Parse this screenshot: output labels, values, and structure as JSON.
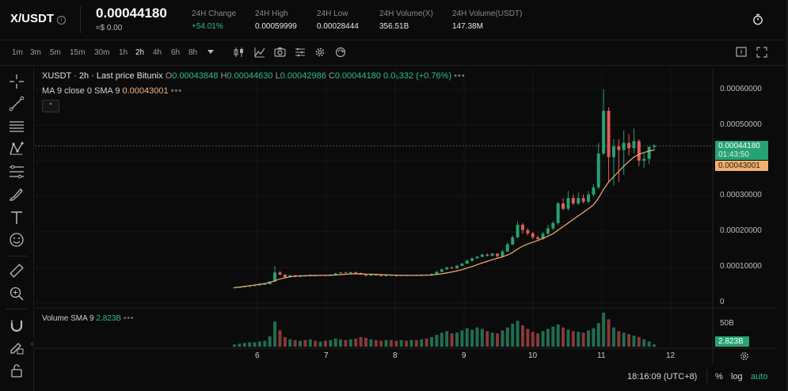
{
  "header": {
    "pair": "X/USDT",
    "price": "0.00044180",
    "usd_value": "≈$ 0.00",
    "stats": [
      {
        "label": "24H Change",
        "value": "+54.01%",
        "color": "#2ebd85"
      },
      {
        "label": "24H High",
        "value": "0.00059999"
      },
      {
        "label": "24H Low",
        "value": "0.00028444"
      },
      {
        "label": "24H Volume(X)",
        "value": "356.51B"
      },
      {
        "label": "24H Volume(USDT)",
        "value": "147.38M"
      }
    ]
  },
  "toolbar": {
    "intervals": [
      "1m",
      "3m",
      "5m",
      "15m",
      "30m",
      "1h",
      "2h",
      "4h",
      "6h",
      "8h"
    ],
    "active_interval": "2h"
  },
  "chart": {
    "symbol_line": "XUSDT · 2h · Last price Bitunix",
    "ohlc": {
      "o": "0.00043848",
      "h": "0.00044630",
      "l": "0.00042986",
      "c": "0.00044180",
      "change": "0.0₅332 (+0.76%)"
    },
    "ma_label": "MA 9 close 0 SMA 9",
    "ma_value": "0.00043001",
    "price_axis": [
      "0.00060000",
      "0.00050000",
      "0.00040000",
      "0.00030000",
      "0.00020000",
      "0.00010000",
      "0"
    ],
    "last_price_tag": "0.00044180",
    "countdown": "01:43:50",
    "ma_tag": "0.00043001",
    "volume_legend": "Volume SMA 9",
    "volume_sma_value": "2.823B",
    "volume_axis_label": "50B",
    "volume_tag": "2.823B",
    "x_axis": [
      "6",
      "7",
      "8",
      "9",
      "10",
      "11",
      "12"
    ],
    "time": "18:16:09 (UTC+8)",
    "bottom_controls": [
      "%",
      "log",
      "auto"
    ],
    "colors": {
      "up": "#26a273",
      "down": "#e15e5e",
      "ma": "#f2b06f",
      "bg": "#0b0b0b"
    }
  },
  "candles": [
    [
      4.2e-05,
      4.4e-05,
      4.3e-05,
      4.48e-05
    ],
    [
      4.4e-05,
      4.52e-05,
      4.36e-05,
      4.58e-05
    ],
    [
      4.52e-05,
      4.68e-05,
      4.48e-05,
      4.72e-05
    ],
    [
      4.68e-05,
      4.82e-05,
      4.62e-05,
      4.88e-05
    ],
    [
      4.82e-05,
      5e-05,
      4.76e-05,
      5.08e-05
    ],
    [
      5e-05,
      5.2e-05,
      4.95e-05,
      5.28e-05
    ],
    [
      5.2e-05,
      5.35e-05,
      5.12e-05,
      5.45e-05
    ],
    [
      5.35e-05,
      6.1e-05,
      5.28e-05,
      6.2e-05
    ],
    [
      6.1e-05,
      8.6e-05,
      6e-05,
      0.000104
    ],
    [
      8.6e-05,
      8e-05,
      7.9e-05,
      9e-05
    ],
    [
      8e-05,
      7.3e-05,
      7.2e-05,
      8.1e-05
    ],
    [
      7.3e-05,
      7.8e-05,
      7.2e-05,
      8e-05
    ],
    [
      7.8e-05,
      7.4e-05,
      7.3e-05,
      7.9e-05
    ],
    [
      7.4e-05,
      7.75e-05,
      7.35e-05,
      7.9e-05
    ],
    [
      7.75e-05,
      7.6e-05,
      7.5e-05,
      7.9e-05
    ],
    [
      7.6e-05,
      7.95e-05,
      7.5e-05,
      8.1e-05
    ],
    [
      7.95e-05,
      7.7e-05,
      7.6e-05,
      8e-05
    ],
    [
      7.7e-05,
      7.9e-05,
      7.65e-05,
      8.05e-05
    ],
    [
      7.9e-05,
      7.65e-05,
      7.6e-05,
      7.95e-05
    ],
    [
      7.65e-05,
      8e-05,
      7.6e-05,
      8.15e-05
    ],
    [
      8e-05,
      8.35e-05,
      7.95e-05,
      8.5e-05
    ],
    [
      8.35e-05,
      8.6e-05,
      8.25e-05,
      8.75e-05
    ],
    [
      8.6e-05,
      8.4e-05,
      8.35e-05,
      8.8e-05
    ],
    [
      8.4e-05,
      8.7e-05,
      8.3e-05,
      8.85e-05
    ],
    [
      8.7e-05,
      8.45e-05,
      8.35e-05,
      8.8e-05
    ],
    [
      8.45e-05,
      8.05e-05,
      8e-05,
      8.55e-05
    ],
    [
      8.05e-05,
      7.7e-05,
      7.6e-05,
      8.15e-05
    ],
    [
      7.7e-05,
      8.1e-05,
      7.6e-05,
      8.3e-05
    ],
    [
      8.1e-05,
      7.8e-05,
      7.7e-05,
      8.2e-05
    ],
    [
      7.8e-05,
      7.6e-05,
      7.5e-05,
      7.9e-05
    ],
    [
      7.6e-05,
      7.9e-05,
      7.5e-05,
      8e-05
    ],
    [
      7.9e-05,
      7.75e-05,
      7.7e-05,
      8e-05
    ],
    [
      7.75e-05,
      7.6e-05,
      7.55e-05,
      7.9e-05
    ],
    [
      7.6e-05,
      7.85e-05,
      7.55e-05,
      7.95e-05
    ],
    [
      7.85e-05,
      7.7e-05,
      7.65e-05,
      7.95e-05
    ],
    [
      7.7e-05,
      7.9e-05,
      7.65e-05,
      8e-05
    ],
    [
      7.9e-05,
      7.75e-05,
      7.7e-05,
      8e-05
    ],
    [
      7.75e-05,
      8e-05,
      7.7e-05,
      8.1e-05
    ],
    [
      8e-05,
      7.9e-05,
      7.85e-05,
      8.15e-05
    ],
    [
      7.9e-05,
      8.2e-05,
      7.85e-05,
      8.35e-05
    ],
    [
      8.2e-05,
      8.8e-05,
      8.15e-05,
      9e-05
    ],
    [
      8.8e-05,
      9.5e-05,
      8.7e-05,
      9.7e-05
    ],
    [
      9.5e-05,
      0.0001,
      9.3e-05,
      0.000102
    ],
    [
      0.0001,
      9.8e-05,
      9.6e-05,
      0.000103
    ],
    [
      9.8e-05,
      0.000105,
      9.7e-05,
      0.000107
    ],
    [
      0.000105,
      0.000111,
      0.000104,
      0.000113
    ],
    [
      0.000111,
      0.000119,
      0.00011,
      0.000122
    ],
    [
      0.000119,
      0.000126,
      0.000117,
      0.000128
    ],
    [
      0.000126,
      0.00013,
      0.000124,
      0.000133
    ],
    [
      0.00013,
      0.000136,
      0.000129,
      0.000139
    ],
    [
      0.000136,
      0.000133,
      0.000131,
      0.00014
    ],
    [
      0.000133,
      0.000139,
      0.000132,
      0.000141
    ],
    [
      0.000139,
      0.000132,
      0.000127,
      0.00014
    ],
    [
      0.000132,
      0.000145,
      0.00013,
      0.00015
    ],
    [
      0.000145,
      0.000165,
      0.000143,
      0.00017
    ],
    [
      0.000165,
      0.000185,
      0.000162,
      0.00019
    ],
    [
      0.000185,
      0.00022,
      0.000182,
      0.00023
    ],
    [
      0.00022,
      0.000205,
      0.000195,
      0.000225
    ],
    [
      0.000205,
      0.000196,
      0.00019,
      0.00021
    ],
    [
      0.000196,
      0.000185,
      0.00018,
      0.0002
    ],
    [
      0.000185,
      0.00018,
      0.000175,
      0.00019
    ],
    [
      0.00018,
      0.000195,
      0.000178,
      0.0002
    ],
    [
      0.000195,
      0.00021,
      0.000192,
      0.00022
    ],
    [
      0.00021,
      0.000225,
      0.000205,
      0.00023
    ],
    [
      0.000225,
      0.00028,
      0.00022,
      0.000285
    ],
    [
      0.00028,
      0.000265,
      0.00026,
      0.000295
    ],
    [
      0.000265,
      0.000295,
      0.00026,
      0.000315
    ],
    [
      0.000295,
      0.00028,
      0.000275,
      0.000305
    ],
    [
      0.00028,
      0.000295,
      0.000275,
      0.00031
    ],
    [
      0.000295,
      0.000285,
      0.00028,
      0.000305
    ],
    [
      0.000285,
      0.000305,
      0.00028,
      0.000315
    ],
    [
      0.000305,
      0.000325,
      0.0003,
      0.000335
    ],
    [
      0.000325,
      0.00042,
      0.00032,
      0.00045
    ],
    [
      0.00042,
      0.00054,
      0.000415,
      0.0005999
    ],
    [
      0.00054,
      0.00041,
      0.00034,
      0.00055
    ],
    [
      0.00041,
      0.00044,
      0.00033,
      0.00046
    ],
    [
      0.00044,
      0.00043,
      0.00034,
      0.00046
    ],
    [
      0.00043,
      0.00045,
      0.00036,
      0.000485
    ],
    [
      0.00045,
      0.000435,
      0.000415,
      0.000475
    ],
    [
      0.000435,
      0.000455,
      0.00042,
      0.00049
    ],
    [
      0.000455,
      0.0004,
      0.000385,
      0.00046
    ],
    [
      0.0004,
      0.000405,
      0.00038,
      0.00042
    ],
    [
      0.000405,
      0.0004385,
      0.00039,
      0.00044
    ],
    [
      0.0004385,
      0.0004418,
      0.0004299,
      0.0004463
    ]
  ],
  "ma": [
    4.4e-05,
    4.5e-05,
    4.7e-05,
    4.9e-05,
    5.1e-05,
    5.3e-05,
    5.5e-05,
    5.8e-05,
    6.3e-05,
    6.8e-05,
    7.1e-05,
    7.4e-05,
    7.6e-05,
    7.65e-05,
    7.7e-05,
    7.75e-05,
    7.75e-05,
    7.8e-05,
    7.8e-05,
    7.82e-05,
    7.9e-05,
    8e-05,
    8.1e-05,
    8.2e-05,
    8.25e-05,
    8.22e-05,
    8.15e-05,
    8.12e-05,
    8.08e-05,
    8e-05,
    7.95e-05,
    7.9e-05,
    7.85e-05,
    7.82e-05,
    7.8e-05,
    7.8e-05,
    7.8e-05,
    7.82e-05,
    7.85e-05,
    7.9e-05,
    8.05e-05,
    8.25e-05,
    8.5e-05,
    8.75e-05,
    9.05e-05,
    9.4e-05,
    9.85e-05,
    0.000103,
    0.000108,
    0.000113,
    0.0001175,
    0.000122,
    0.000126,
    0.00013,
    0.000135,
    0.000142,
    0.000152,
    0.00016,
    0.000166,
    0.000171,
    0.000176,
    0.000182,
    0.000188,
    0.000195,
    0.000205,
    0.000215,
    0.000225,
    0.000235,
    0.000245,
    0.000255,
    0.000265,
    0.000276,
    0.000295,
    0.00032,
    0.00034,
    0.000355,
    0.00037,
    0.000385,
    0.000398,
    0.00041,
    0.000418,
    0.000423,
    0.000427,
    0.00043
  ],
  "volumes": [
    0.3,
    0.4,
    0.5,
    0.6,
    0.6,
    0.7,
    0.8,
    1.4,
    3.4,
    2.2,
    1.3,
    1.0,
    0.9,
    0.8,
    0.9,
    1.0,
    0.8,
    0.7,
    0.8,
    0.9,
    1.1,
    1.0,
    0.9,
    1.0,
    1.1,
    1.3,
    1.2,
    1.0,
    0.9,
    0.8,
    0.9,
    0.9,
    0.8,
    0.9,
    0.8,
    0.9,
    0.9,
    1.0,
    1.1,
    1.3,
    1.6,
    1.9,
    2.1,
    1.8,
    1.9,
    2.2,
    2.5,
    2.3,
    2.6,
    2.4,
    2.1,
    1.9,
    1.8,
    2.2,
    2.6,
    3.1,
    3.5,
    2.9,
    2.4,
    2.0,
    1.8,
    2.1,
    2.4,
    2.7,
    3.0,
    2.6,
    2.3,
    2.1,
    2.0,
    1.9,
    2.2,
    2.5,
    3.2,
    4.6,
    3.7,
    2.6,
    2.1,
    1.9,
    1.7,
    1.5,
    1.3,
    1.0,
    0.7,
    0.3
  ]
}
